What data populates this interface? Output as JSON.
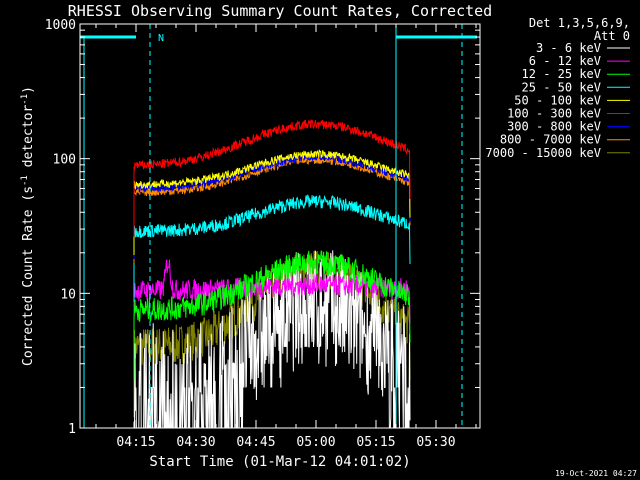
{
  "chart_data": {
    "type": "line",
    "title": "RHESSI Observing Summary Count Rates, Corrected",
    "xlabel": "Start Time (01-Mar-12 04:01:02)",
    "ylabel": "Corrected Count Rate (s⁻¹ detector⁻¹)",
    "ylabel_parts": {
      "prefix": "Corrected Count Rate (s",
      "sup1": "-1",
      "mid": " detector",
      "sup2": "-1",
      "suffix": ")"
    },
    "yscale": "log",
    "xlim_minutes": [
      0,
      100
    ],
    "ylim": [
      1,
      1000
    ],
    "x_ticks": [
      {
        "label": "04:15",
        "min": 14
      },
      {
        "label": "04:30",
        "min": 29
      },
      {
        "label": "04:45",
        "min": 44
      },
      {
        "label": "05:00",
        "min": 59
      },
      {
        "label": "05:15",
        "min": 74
      },
      {
        "label": "05:30",
        "min": 89
      }
    ],
    "y_ticks": [
      {
        "label": "1",
        "value": 1
      },
      {
        "label": "10",
        "value": 10
      },
      {
        "label": "100",
        "value": 100
      },
      {
        "label": "1000",
        "value": 1000
      }
    ],
    "legend_title": [
      "Det 1,3,5,6,9,",
      "Att 0"
    ],
    "legend_position": "right",
    "data_start_min": 13.5,
    "data_end_min": 82.5,
    "flare_peak_min": 59,
    "series": [
      {
        "name": "3 - 6 keV",
        "color": "#ffffff",
        "base": 2.0,
        "peak": 8.0,
        "width": 11,
        "noise": 0.45,
        "dropouts": true
      },
      {
        "name": "6 - 12 keV",
        "color": "#ff00ff",
        "base": 10.5,
        "peak": 11.5,
        "width": 14,
        "noise": 0.08,
        "spike_min": 22,
        "spike_val": 17
      },
      {
        "name": "12 - 25 keV",
        "color": "#00ff00",
        "base": 7.5,
        "peak": 17.0,
        "width": 13,
        "noise": 0.09
      },
      {
        "name": "25 - 50 keV",
        "color": "#00ffff",
        "base": 29.0,
        "peak": 48.0,
        "width": 13,
        "noise": 0.05
      },
      {
        "name": "50 - 100 keV",
        "color": "#ffff00",
        "base": 64.0,
        "peak": 108.0,
        "width": 14,
        "noise": 0.03
      },
      {
        "name": "100 - 300 keV",
        "color": "#ff0000",
        "base": 88.0,
        "peak": 180.0,
        "width": 15,
        "noise": 0.035
      },
      {
        "name": "300 - 800 keV",
        "color": "#0000ff",
        "base": 60.0,
        "peak": 103.0,
        "width": 14,
        "noise": 0.03
      },
      {
        "name": "800 - 7000 keV",
        "color": "#ff8c00",
        "base": 56.0,
        "peak": 98.0,
        "width": 14,
        "noise": 0.03
      },
      {
        "name": "7000 - 15000 keV",
        "color": "#808000",
        "base": 4.0,
        "peak": 15.0,
        "width": 12,
        "noise": 0.15
      }
    ],
    "saa_flag_label": "N",
    "timestamp": "19-Oct-2021 04:27"
  }
}
